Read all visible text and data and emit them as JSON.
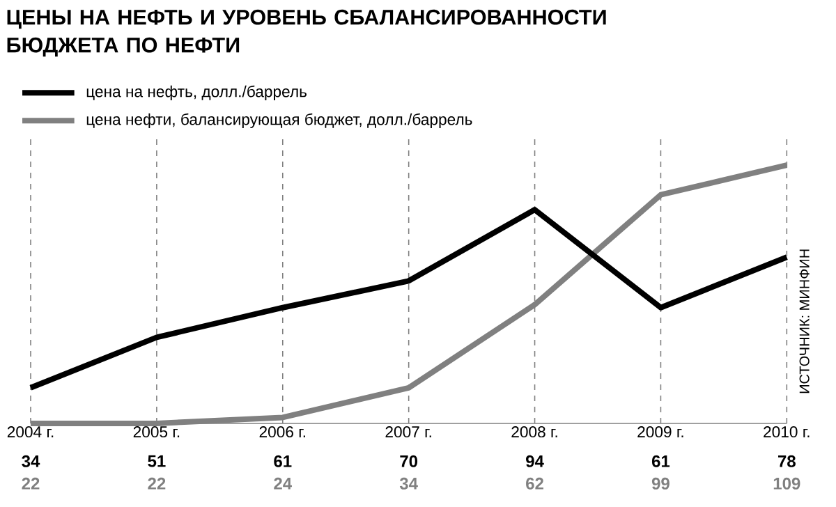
{
  "chart_data": {
    "type": "line",
    "title": "ЦЕНЫ НА НЕФТЬ И УРОВЕНЬ СБАЛАНСИРОВАННОСТИ БЮДЖЕТА ПО НЕФТИ",
    "categories": [
      "2004 г.",
      "2005 г.",
      "2006 г.",
      "2007 г.",
      "2008 г.",
      "2009 г.",
      "2010 г."
    ],
    "series": [
      {
        "name": "цена на нефть, долл./баррель",
        "color": "#000000",
        "values": [
          34,
          51,
          61,
          70,
          94,
          61,
          78
        ]
      },
      {
        "name": "цена нефти, балансирующая бюджет, долл./баррель",
        "color": "#808080",
        "values": [
          22,
          22,
          24,
          34,
          62,
          99,
          109
        ]
      }
    ],
    "grid": "x",
    "legend": "top left",
    "marker": "none",
    "data_labels": true,
    "annotations": [
      "ИСТОЧНИК: МИНФИН"
    ]
  }
}
